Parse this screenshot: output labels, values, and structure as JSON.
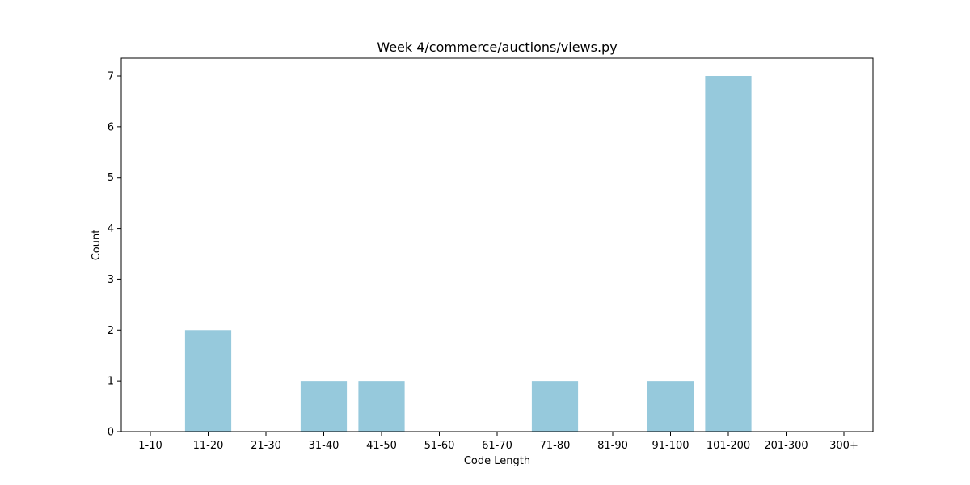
{
  "chart_data": {
    "type": "bar",
    "title": "Week 4/commerce/auctions/views.py",
    "xlabel": "Code Length",
    "ylabel": "Count",
    "categories": [
      "1-10",
      "11-20",
      "21-30",
      "31-40",
      "41-50",
      "51-60",
      "61-70",
      "71-80",
      "81-90",
      "91-100",
      "101-200",
      "201-300",
      "300+"
    ],
    "values": [
      0,
      2,
      0,
      1,
      1,
      0,
      0,
      1,
      0,
      1,
      7,
      0,
      0
    ],
    "ylim": [
      0,
      7.35
    ],
    "yticks": [
      0,
      1,
      2,
      3,
      4,
      5,
      6,
      7
    ],
    "bar_color": "#96c9dc",
    "grid": false,
    "legend": "none"
  }
}
